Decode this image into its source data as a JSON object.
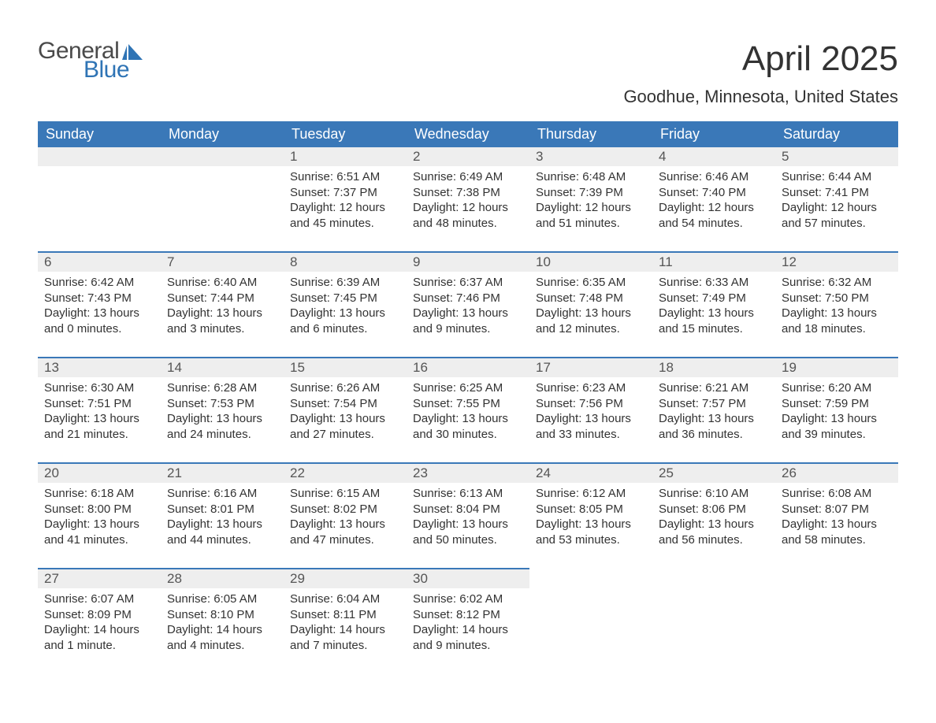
{
  "logo": {
    "word1": "General",
    "word2": "Blue",
    "shape_color": "#2f74b5",
    "text_gray": "#4a4a4a"
  },
  "title": "April 2025",
  "location": "Goodhue, Minnesota, United States",
  "colors": {
    "header_bg": "#3a78b8",
    "header_text": "#ffffff",
    "daynum_bg": "#eeeeee",
    "week_border": "#3a78b8",
    "body_text": "#333333"
  },
  "day_headers": [
    "Sunday",
    "Monday",
    "Tuesday",
    "Wednesday",
    "Thursday",
    "Friday",
    "Saturday"
  ],
  "weeks": [
    [
      null,
      null,
      {
        "n": "1",
        "sr": "6:51 AM",
        "ss": "7:37 PM",
        "dl": "12 hours and 45 minutes."
      },
      {
        "n": "2",
        "sr": "6:49 AM",
        "ss": "7:38 PM",
        "dl": "12 hours and 48 minutes."
      },
      {
        "n": "3",
        "sr": "6:48 AM",
        "ss": "7:39 PM",
        "dl": "12 hours and 51 minutes."
      },
      {
        "n": "4",
        "sr": "6:46 AM",
        "ss": "7:40 PM",
        "dl": "12 hours and 54 minutes."
      },
      {
        "n": "5",
        "sr": "6:44 AM",
        "ss": "7:41 PM",
        "dl": "12 hours and 57 minutes."
      }
    ],
    [
      {
        "n": "6",
        "sr": "6:42 AM",
        "ss": "7:43 PM",
        "dl": "13 hours and 0 minutes."
      },
      {
        "n": "7",
        "sr": "6:40 AM",
        "ss": "7:44 PM",
        "dl": "13 hours and 3 minutes."
      },
      {
        "n": "8",
        "sr": "6:39 AM",
        "ss": "7:45 PM",
        "dl": "13 hours and 6 minutes."
      },
      {
        "n": "9",
        "sr": "6:37 AM",
        "ss": "7:46 PM",
        "dl": "13 hours and 9 minutes."
      },
      {
        "n": "10",
        "sr": "6:35 AM",
        "ss": "7:48 PM",
        "dl": "13 hours and 12 minutes."
      },
      {
        "n": "11",
        "sr": "6:33 AM",
        "ss": "7:49 PM",
        "dl": "13 hours and 15 minutes."
      },
      {
        "n": "12",
        "sr": "6:32 AM",
        "ss": "7:50 PM",
        "dl": "13 hours and 18 minutes."
      }
    ],
    [
      {
        "n": "13",
        "sr": "6:30 AM",
        "ss": "7:51 PM",
        "dl": "13 hours and 21 minutes."
      },
      {
        "n": "14",
        "sr": "6:28 AM",
        "ss": "7:53 PM",
        "dl": "13 hours and 24 minutes."
      },
      {
        "n": "15",
        "sr": "6:26 AM",
        "ss": "7:54 PM",
        "dl": "13 hours and 27 minutes."
      },
      {
        "n": "16",
        "sr": "6:25 AM",
        "ss": "7:55 PM",
        "dl": "13 hours and 30 minutes."
      },
      {
        "n": "17",
        "sr": "6:23 AM",
        "ss": "7:56 PM",
        "dl": "13 hours and 33 minutes."
      },
      {
        "n": "18",
        "sr": "6:21 AM",
        "ss": "7:57 PM",
        "dl": "13 hours and 36 minutes."
      },
      {
        "n": "19",
        "sr": "6:20 AM",
        "ss": "7:59 PM",
        "dl": "13 hours and 39 minutes."
      }
    ],
    [
      {
        "n": "20",
        "sr": "6:18 AM",
        "ss": "8:00 PM",
        "dl": "13 hours and 41 minutes."
      },
      {
        "n": "21",
        "sr": "6:16 AM",
        "ss": "8:01 PM",
        "dl": "13 hours and 44 minutes."
      },
      {
        "n": "22",
        "sr": "6:15 AM",
        "ss": "8:02 PM",
        "dl": "13 hours and 47 minutes."
      },
      {
        "n": "23",
        "sr": "6:13 AM",
        "ss": "8:04 PM",
        "dl": "13 hours and 50 minutes."
      },
      {
        "n": "24",
        "sr": "6:12 AM",
        "ss": "8:05 PM",
        "dl": "13 hours and 53 minutes."
      },
      {
        "n": "25",
        "sr": "6:10 AM",
        "ss": "8:06 PM",
        "dl": "13 hours and 56 minutes."
      },
      {
        "n": "26",
        "sr": "6:08 AM",
        "ss": "8:07 PM",
        "dl": "13 hours and 58 minutes."
      }
    ],
    [
      {
        "n": "27",
        "sr": "6:07 AM",
        "ss": "8:09 PM",
        "dl": "14 hours and 1 minute."
      },
      {
        "n": "28",
        "sr": "6:05 AM",
        "ss": "8:10 PM",
        "dl": "14 hours and 4 minutes."
      },
      {
        "n": "29",
        "sr": "6:04 AM",
        "ss": "8:11 PM",
        "dl": "14 hours and 7 minutes."
      },
      {
        "n": "30",
        "sr": "6:02 AM",
        "ss": "8:12 PM",
        "dl": "14 hours and 9 minutes."
      },
      null,
      null,
      null
    ]
  ],
  "labels": {
    "sunrise": "Sunrise: ",
    "sunset": "Sunset: ",
    "daylight": "Daylight: "
  }
}
